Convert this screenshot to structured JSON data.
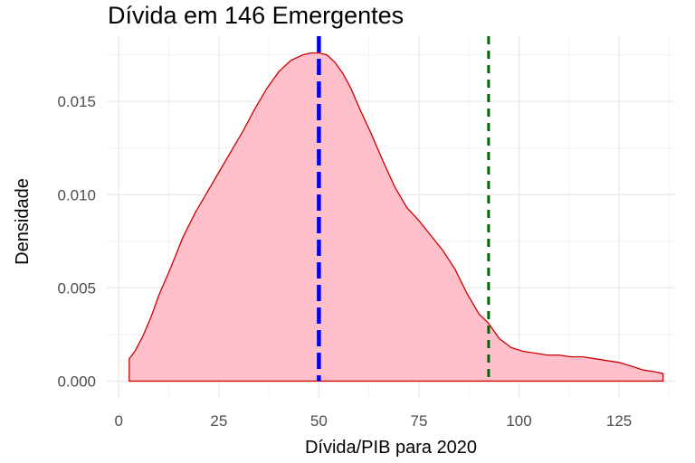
{
  "chart_data": {
    "type": "area",
    "title": "Dívida em 146 Emergentes",
    "xlabel": "Dívida/PIB para 2020",
    "ylabel": "Densidade",
    "xlim": [
      -3,
      139
    ],
    "ylim": [
      -0.0009,
      0.0185
    ],
    "x_ticks": [
      0,
      25,
      50,
      75,
      100,
      125
    ],
    "y_ticks": [
      0.0,
      0.005,
      0.01,
      0.015
    ],
    "x_tick_labels": [
      "0",
      "25",
      "50",
      "75",
      "100",
      "125"
    ],
    "y_tick_labels": [
      "0.000",
      "0.005",
      "0.010",
      "0.015"
    ],
    "grid": true,
    "series": [
      {
        "fill": "#ffc0cb",
        "stroke": "#cc0000",
        "x": [
          2.6,
          4,
          6,
          8,
          10,
          13,
          16,
          19,
          22,
          25,
          28,
          31,
          34,
          37,
          40,
          43,
          46,
          48,
          50,
          52,
          54,
          56,
          58,
          60,
          63,
          66,
          69,
          72,
          75,
          78,
          81,
          84,
          87,
          90,
          92.4,
          95,
          98,
          101,
          104,
          107,
          110,
          113,
          116,
          119,
          122,
          125,
          128,
          131,
          134,
          136
        ],
        "y": [
          0.0012,
          0.0016,
          0.0024,
          0.0034,
          0.0046,
          0.0061,
          0.0077,
          0.009,
          0.0101,
          0.0112,
          0.0123,
          0.0134,
          0.0146,
          0.0157,
          0.0166,
          0.0172,
          0.0175,
          0.0176,
          0.0176,
          0.0175,
          0.0171,
          0.0165,
          0.0157,
          0.0147,
          0.0133,
          0.0118,
          0.0104,
          0.0093,
          0.0086,
          0.0078,
          0.007,
          0.006,
          0.0047,
          0.0036,
          0.0031,
          0.0023,
          0.0018,
          0.0016,
          0.0015,
          0.0014,
          0.0014,
          0.0013,
          0.0013,
          0.0012,
          0.0011,
          0.001,
          0.0008,
          0.0006,
          0.0005,
          0.0004
        ]
      }
    ],
    "vlines": [
      {
        "x": 50,
        "color": "#0000ee",
        "style": "dashed"
      },
      {
        "x": 92.4,
        "color": "#006400",
        "style": "dashed"
      }
    ]
  }
}
